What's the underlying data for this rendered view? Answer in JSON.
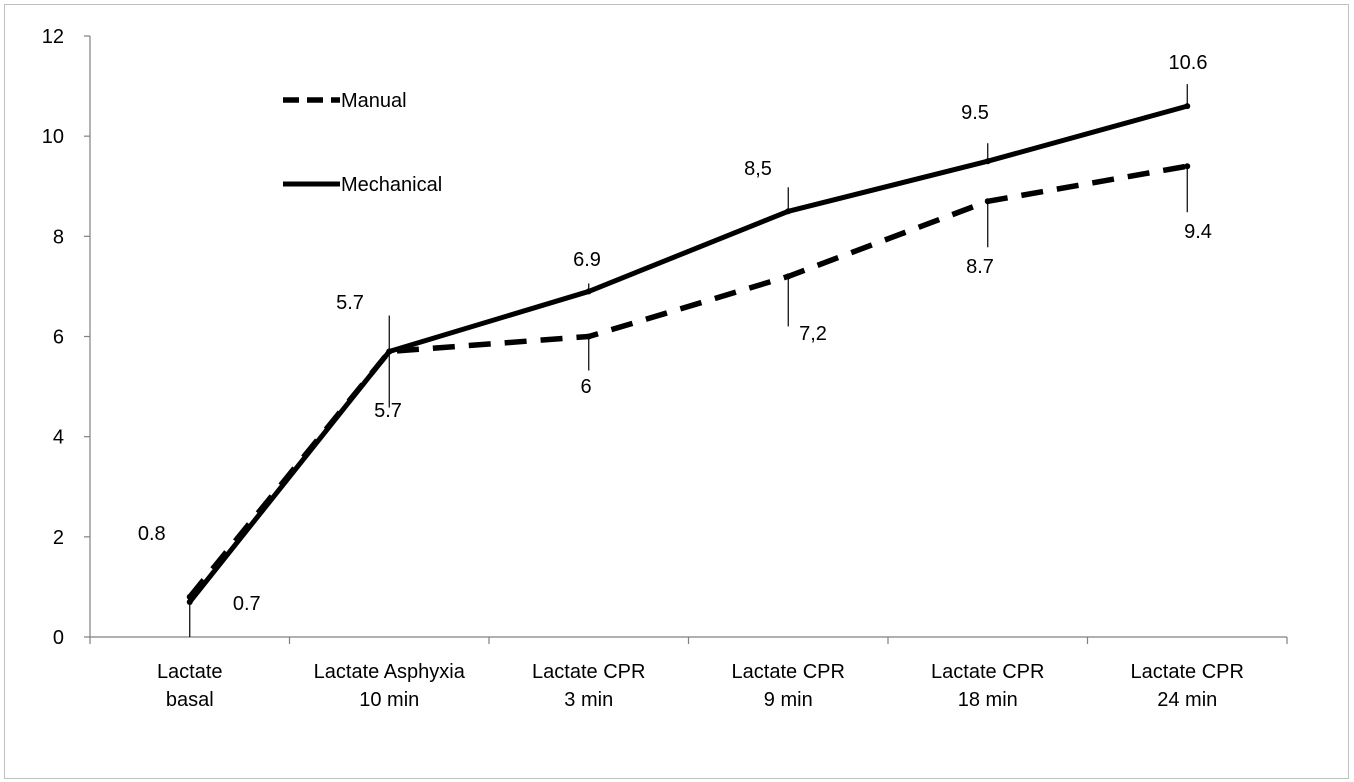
{
  "chart_data": {
    "type": "line",
    "categories": [
      [
        "Lactate",
        "basal"
      ],
      [
        "Lactate Asphyxia",
        "10 min"
      ],
      [
        "Lactate CPR",
        "3 min"
      ],
      [
        "Lactate CPR",
        "9 min"
      ],
      [
        "Lactate CPR",
        "18 min"
      ],
      [
        "Lactate  CPR",
        "24 min"
      ]
    ],
    "ylim": [
      0,
      12
    ],
    "yticks": [
      0,
      2,
      4,
      6,
      8,
      10,
      12
    ],
    "legend_position": "top-left",
    "grid": false,
    "series": [
      {
        "name": "Manual",
        "style": "dashed",
        "color": "#000000",
        "values": [
          0.8,
          5.7,
          6,
          7.2,
          8.7,
          9.4
        ],
        "labels": [
          "0.8",
          "5.7",
          "6",
          "7,2",
          "8.7",
          "9.4"
        ]
      },
      {
        "name": "Mechanical",
        "style": "solid",
        "color": "#000000",
        "values": [
          0.7,
          5.7,
          6.9,
          8.5,
          9.5,
          10.6
        ],
        "labels": [
          "0.7",
          "5.7",
          "6.9",
          "8,5",
          "9.5",
          "10.6"
        ]
      }
    ]
  }
}
